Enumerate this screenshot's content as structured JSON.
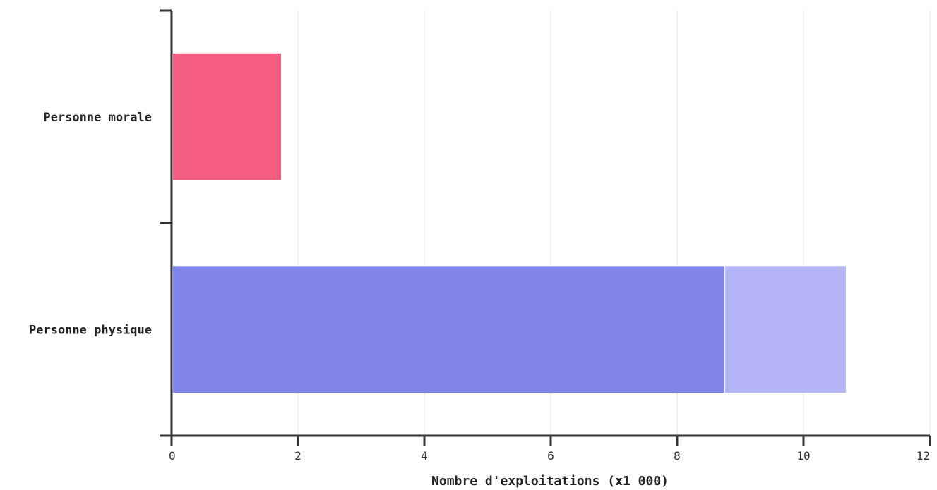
{
  "chart_data": {
    "type": "bar",
    "orientation": "horizontal",
    "stacked": true,
    "categories": [
      "Personne morale",
      "Personne physique"
    ],
    "series": [
      {
        "color": "#f25d80",
        "values": [
          1.72,
          0
        ]
      },
      {
        "color": "#8085e9",
        "values": [
          0,
          8.74
        ]
      },
      {
        "color": "#b3b5f4",
        "values": [
          0,
          1.92
        ]
      }
    ],
    "xlabel": "Nombre d'exploitations (x1 000)",
    "ylabel": "",
    "xlim": [
      0,
      12
    ],
    "xticks": [
      "0",
      "2",
      "4",
      "6",
      "8",
      "10",
      "12"
    ],
    "grid": true
  }
}
